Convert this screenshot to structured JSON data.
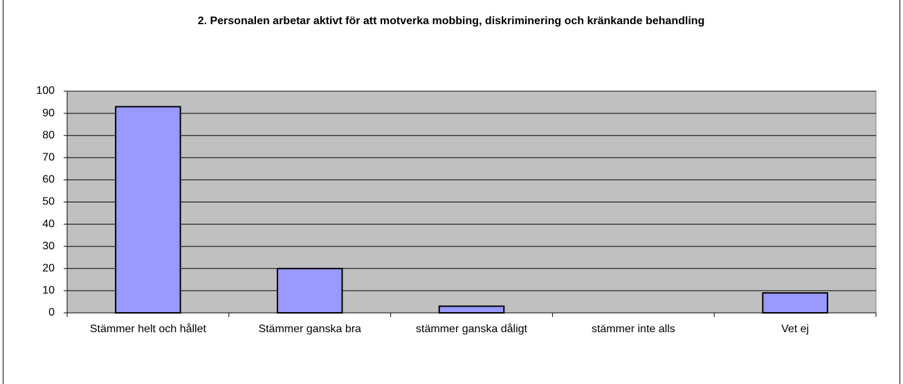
{
  "chart_data": {
    "type": "bar",
    "title": "2. Personalen arbetar aktivt för att motverka mobbing, diskriminering och kränkande behandling",
    "categories": [
      "Stämmer helt och hållet",
      "Stämmer ganska bra",
      "stämmer ganska dåligt",
      "stämmer inte alls",
      "Vet ej"
    ],
    "values": [
      93,
      20,
      3,
      0,
      9
    ],
    "color": "#9999ff",
    "ylim": [
      0,
      100
    ],
    "yticks": [
      0,
      10,
      20,
      30,
      40,
      50,
      60,
      70,
      80,
      90,
      100
    ],
    "grid": true
  }
}
